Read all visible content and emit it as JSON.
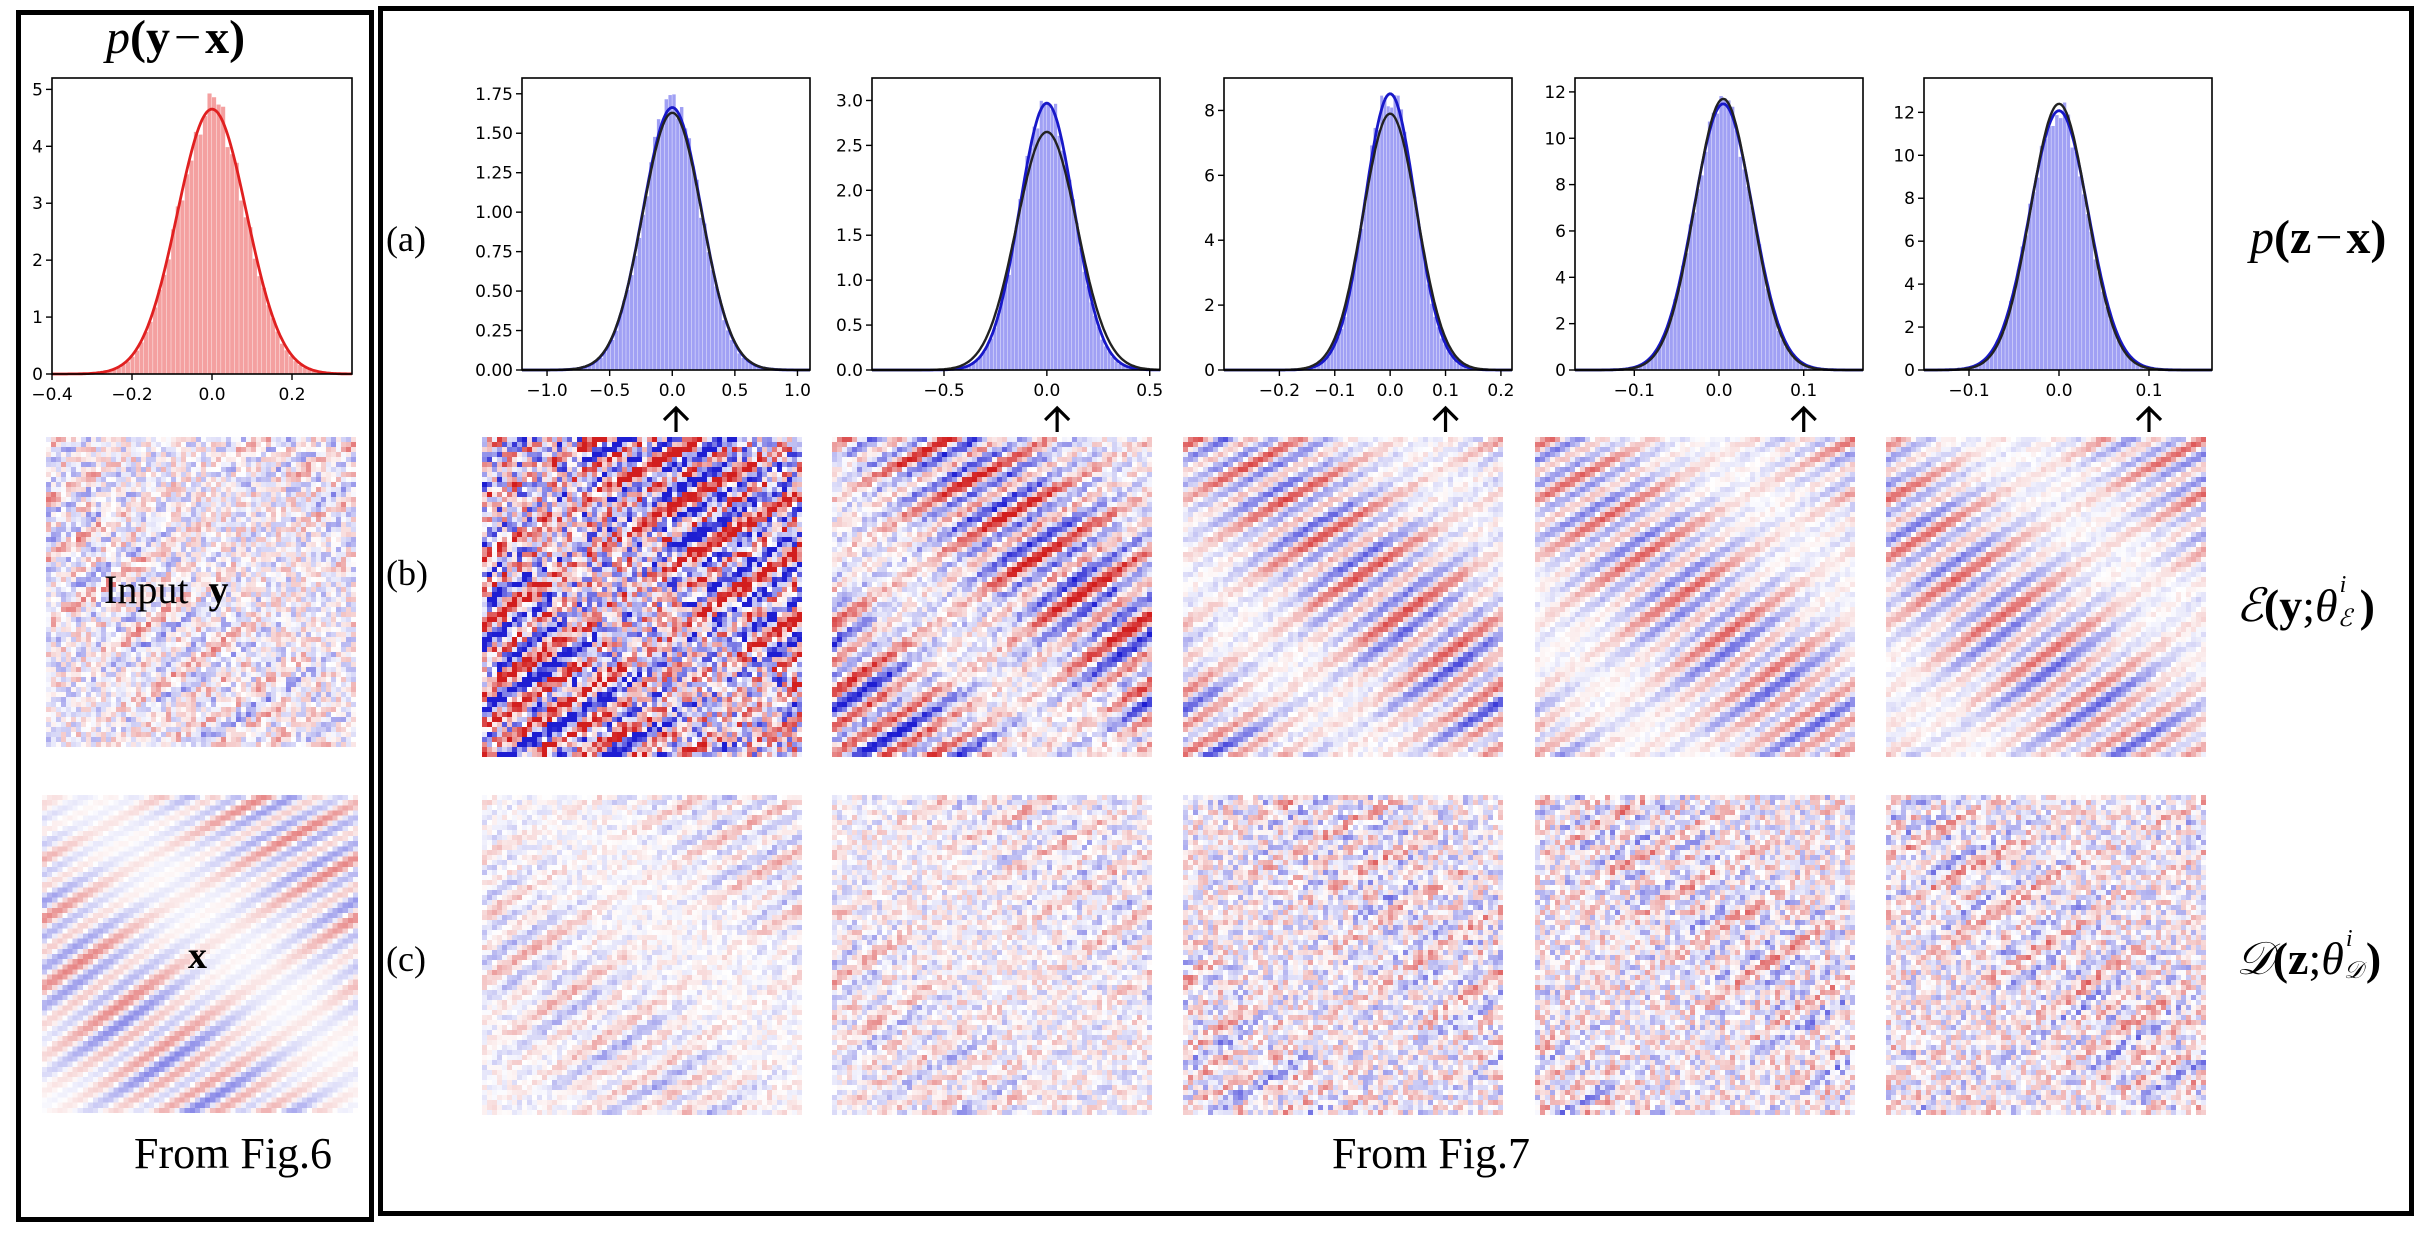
{
  "left_panel": {
    "title_p": "p",
    "title_paren_open": "(",
    "title_y": "y",
    "title_minus": "−",
    "title_x": "x",
    "title_paren_close": ")",
    "input_label_word": "Input",
    "input_label_y": "y",
    "clean_label_x": "x",
    "caption": "From Fig.6"
  },
  "right_panel": {
    "row_labels": [
      "(a)",
      "(b)",
      "(c)"
    ],
    "row_a_right": {
      "p": "p",
      "open": "(",
      "z": "z",
      "minus": "−",
      "x": "x",
      "close": ")"
    },
    "row_b_right": {
      "E": "ℰ",
      "open": "(",
      "y": "y",
      "semi": ";",
      "theta": "θ",
      "sup": "i",
      "sub": "ℰ",
      "close": ")"
    },
    "row_c_right": {
      "D": "𝒟",
      "open": "(",
      "z": "z",
      "semi": ";",
      "theta": "θ",
      "sup": "i",
      "sub": "𝒟",
      "close": ")"
    },
    "caption": "From Fig.7"
  },
  "colors": {
    "red_hist": "#f08080",
    "red_curve": "#e02020",
    "blue_hist": "#8080f0",
    "blue_curve": "#1818c8",
    "fit_curve": "#222222",
    "seismic_pos": "#d21e1e",
    "seismic_neg": "#1e1ed2"
  },
  "chart_data": [
    {
      "type": "histogram",
      "panel": "p(y-x)",
      "xlim": [
        -0.4,
        0.35
      ],
      "ylim": [
        0,
        5.2
      ],
      "xticks": [
        "-0.4",
        "-0.2",
        "0.0",
        "0.2"
      ],
      "xtick_values": [
        -0.4,
        -0.2,
        0.0,
        0.2
      ],
      "yticks": [
        "0",
        "1",
        "2",
        "3",
        "4",
        "5"
      ],
      "ytick_values": [
        0,
        1,
        2,
        3,
        4,
        5
      ],
      "mean": 0.0,
      "std": 0.085,
      "peak": 4.7,
      "kde_color": "red"
    },
    {
      "type": "histogram",
      "panel": "a1",
      "xlim": [
        -1.2,
        1.1
      ],
      "ylim": [
        0,
        1.85
      ],
      "xticks": [
        "-1.0",
        "-0.5",
        "0.0",
        "0.5",
        "1.0"
      ],
      "xtick_values": [
        -1.0,
        -0.5,
        0.0,
        0.5,
        1.0
      ],
      "yticks": [
        "0.00",
        "0.25",
        "0.50",
        "0.75",
        "1.00",
        "1.25",
        "1.50",
        "1.75"
      ],
      "ytick_values": [
        0,
        0.25,
        0.5,
        0.75,
        1.0,
        1.25,
        1.5,
        1.75
      ],
      "mean": 0.0,
      "std": 0.23,
      "peak": 1.68,
      "fit_peak": 1.63,
      "arrow_x": 0.03
    },
    {
      "type": "histogram",
      "panel": "a2",
      "xlim": [
        -0.85,
        0.55
      ],
      "ylim": [
        0,
        3.25
      ],
      "xticks": [
        "-0.5",
        "0.0",
        "0.5"
      ],
      "xtick_values": [
        -0.5,
        0.0,
        0.5
      ],
      "yticks": [
        "0.0",
        "0.5",
        "1.0",
        "1.5",
        "2.0",
        "2.5",
        "3.0"
      ],
      "ytick_values": [
        0,
        0.5,
        1.0,
        1.5,
        2.0,
        2.5,
        3.0
      ],
      "mean": 0.0,
      "std": 0.13,
      "peak": 3.0,
      "fit_peak": 2.65,
      "arrow_x": 0.05
    },
    {
      "type": "histogram",
      "panel": "a3",
      "xlim": [
        -0.3,
        0.22
      ],
      "ylim": [
        0,
        9.0
      ],
      "xticks": [
        "-0.2",
        "-0.1",
        "0.0",
        "0.1",
        "0.2"
      ],
      "xtick_values": [
        -0.2,
        -0.1,
        0.0,
        0.1,
        0.2
      ],
      "yticks": [
        "0",
        "2",
        "4",
        "6",
        "8"
      ],
      "ytick_values": [
        0,
        2,
        4,
        6,
        8
      ],
      "mean": 0.0,
      "std": 0.045,
      "peak": 8.6,
      "fit_peak": 7.9,
      "arrow_x": 0.1
    },
    {
      "type": "histogram",
      "panel": "a4",
      "xlim": [
        -0.17,
        0.17
      ],
      "ylim": [
        0,
        12.6
      ],
      "xticks": [
        "-0.1",
        "0.0",
        "0.1"
      ],
      "xtick_values": [
        -0.1,
        0.0,
        0.1
      ],
      "yticks": [
        "0",
        "2",
        "4",
        "6",
        "8",
        "10",
        "12"
      ],
      "ytick_values": [
        0,
        2,
        4,
        6,
        8,
        10,
        12
      ],
      "mean": 0.005,
      "std": 0.034,
      "peak": 11.6,
      "fit_peak": 11.7,
      "arrow_x": 0.1
    },
    {
      "type": "histogram",
      "panel": "a5",
      "xlim": [
        -0.15,
        0.17
      ],
      "ylim": [
        0,
        13.6
      ],
      "xticks": [
        "-0.1",
        "0.0",
        "0.1"
      ],
      "xtick_values": [
        -0.1,
        0.0,
        0.1
      ],
      "yticks": [
        "0",
        "2",
        "4",
        "6",
        "8",
        "10",
        "12"
      ],
      "ytick_values": [
        0,
        2,
        4,
        6,
        8,
        10,
        12
      ],
      "mean": 0.0,
      "std": 0.032,
      "peak": 12.2,
      "fit_peak": 12.4,
      "arrow_x": 0.1
    }
  ]
}
